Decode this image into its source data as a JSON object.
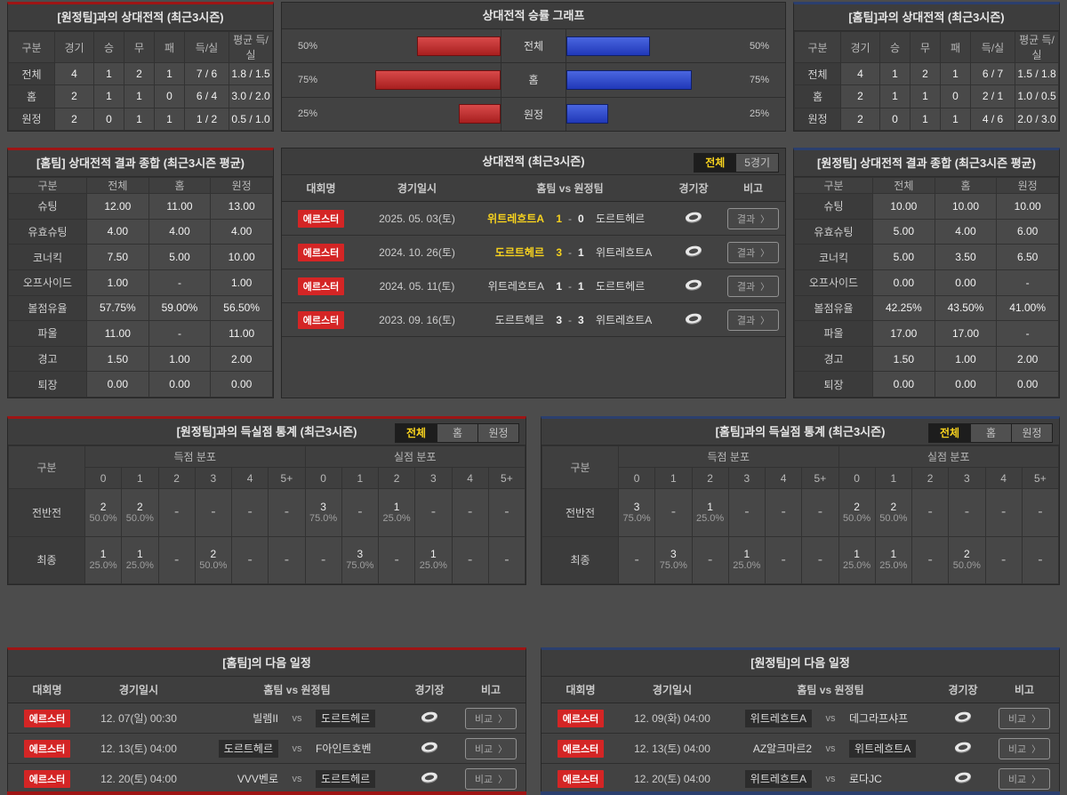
{
  "colors": {
    "accent_home_red": "#9e1515",
    "accent_away_blue": "#2b3f6e",
    "bar_red": "#c23030",
    "bar_blue": "#3550d0",
    "highlight_yellow": "#f7d21e",
    "badge_red": "#d42525"
  },
  "icons": {
    "stadium": "stadium-icon",
    "chevron": "〉"
  },
  "top_left_record": {
    "title": "[원정팀]과의 상대전적 (최근3시즌)",
    "headers": [
      "구분",
      "경기",
      "승",
      "무",
      "패",
      "득/실",
      "평균 득/실"
    ],
    "rows": [
      {
        "label": "전체",
        "cells": [
          "4",
          "1",
          "2",
          "1",
          "7 / 6",
          "1.8 / 1.5"
        ]
      },
      {
        "label": "홈",
        "cells": [
          "2",
          "1",
          "1",
          "0",
          "6 / 4",
          "3.0 / 2.0"
        ]
      },
      {
        "label": "원정",
        "cells": [
          "2",
          "0",
          "1",
          "1",
          "1 / 2",
          "0.5 / 1.0"
        ]
      }
    ]
  },
  "top_right_record": {
    "title": "[홈팀]과의 상대전적 (최근3시즌)",
    "headers": [
      "구분",
      "경기",
      "승",
      "무",
      "패",
      "득/실",
      "평균 득/실"
    ],
    "rows": [
      {
        "label": "전체",
        "cells": [
          "4",
          "1",
          "2",
          "1",
          "6 / 7",
          "1.5 / 1.8"
        ]
      },
      {
        "label": "홈",
        "cells": [
          "2",
          "1",
          "1",
          "0",
          "2 / 1",
          "1.0 / 0.5"
        ]
      },
      {
        "label": "원정",
        "cells": [
          "2",
          "0",
          "1",
          "1",
          "4 / 6",
          "2.0 / 3.0"
        ]
      }
    ]
  },
  "win_rate_chart": {
    "title": "상대전적 승률 그래프",
    "type": "bar",
    "rows": [
      {
        "label": "전체",
        "left_label": "50%",
        "left_pct": 50,
        "right_label": "50%",
        "right_pct": 50
      },
      {
        "label": "홈",
        "left_label": "75%",
        "left_pct": 75,
        "right_label": "75%",
        "right_pct": 75
      },
      {
        "label": "원정",
        "left_label": "25%",
        "left_pct": 25,
        "right_label": "25%",
        "right_pct": 25
      }
    ]
  },
  "home_summary": {
    "title": "[홈팀] 상대전적 결과 종합 (최근3시즌 평균)",
    "headers": [
      "구분",
      "전체",
      "홈",
      "원정"
    ],
    "rows": [
      {
        "label": "슈팅",
        "cells": [
          "12.00",
          "11.00",
          "13.00"
        ]
      },
      {
        "label": "유효슈팅",
        "cells": [
          "4.00",
          "4.00",
          "4.00"
        ]
      },
      {
        "label": "코너킥",
        "cells": [
          "7.50",
          "5.00",
          "10.00"
        ]
      },
      {
        "label": "오프사이드",
        "cells": [
          "1.00",
          "-",
          "1.00"
        ]
      },
      {
        "label": "볼점유율",
        "cells": [
          "57.75%",
          "59.00%",
          "56.50%"
        ]
      },
      {
        "label": "파울",
        "cells": [
          "11.00",
          "-",
          "11.00"
        ]
      },
      {
        "label": "경고",
        "cells": [
          "1.50",
          "1.00",
          "2.00"
        ]
      },
      {
        "label": "퇴장",
        "cells": [
          "0.00",
          "0.00",
          "0.00"
        ]
      }
    ]
  },
  "away_summary": {
    "title": "[원정팀] 상대전적 결과 종합 (최근3시즌 평균)",
    "headers": [
      "구분",
      "전체",
      "홈",
      "원정"
    ],
    "rows": [
      {
        "label": "슈팅",
        "cells": [
          "10.00",
          "10.00",
          "10.00"
        ]
      },
      {
        "label": "유효슈팅",
        "cells": [
          "5.00",
          "4.00",
          "6.00"
        ]
      },
      {
        "label": "코너킥",
        "cells": [
          "5.00",
          "3.50",
          "6.50"
        ]
      },
      {
        "label": "오프사이드",
        "cells": [
          "0.00",
          "0.00",
          "-"
        ]
      },
      {
        "label": "볼점유율",
        "cells": [
          "42.25%",
          "43.50%",
          "41.00%"
        ]
      },
      {
        "label": "파울",
        "cells": [
          "17.00",
          "17.00",
          "-"
        ]
      },
      {
        "label": "경고",
        "cells": [
          "1.50",
          "1.00",
          "2.00"
        ]
      },
      {
        "label": "퇴장",
        "cells": [
          "0.00",
          "0.00",
          "0.00"
        ]
      }
    ]
  },
  "h2h_matches": {
    "title": "상대전적 (최근3시즌)",
    "tabs": [
      {
        "label": "전체",
        "active": true
      },
      {
        "label": "5경기",
        "active": false
      }
    ],
    "headers": {
      "league": "대회명",
      "date": "경기일시",
      "teams": "홈팀  vs  원정팀",
      "stadium": "경기장",
      "note": "비고"
    },
    "note_label": "결과",
    "rows": [
      {
        "league": "에르스터",
        "date": "2025. 05. 03(토)",
        "home": "위트레흐트A",
        "home_win": true,
        "score_home": "1",
        "score_away": "0",
        "away": "도르트헤르",
        "away_win": false
      },
      {
        "league": "에르스터",
        "date": "2024. 10. 26(토)",
        "home": "도르트헤르",
        "home_win": true,
        "score_home": "3",
        "score_away": "1",
        "away": "위트레흐트A",
        "away_win": false
      },
      {
        "league": "에르스터",
        "date": "2024. 05. 11(토)",
        "home": "위트레흐트A",
        "home_win": false,
        "score_home": "1",
        "score_away": "1",
        "away": "도르트헤르",
        "away_win": false
      },
      {
        "league": "에르스터",
        "date": "2023. 09. 16(토)",
        "home": "도르트헤르",
        "home_win": false,
        "score_home": "3",
        "score_away": "3",
        "away": "위트레흐트A",
        "away_win": false
      }
    ]
  },
  "goal_stats_left": {
    "title": "[원정팀]과의 득실점 통계 (최근3시즌)",
    "tabs": [
      {
        "label": "전체",
        "active": true
      },
      {
        "label": "홈",
        "active": false
      },
      {
        "label": "원정",
        "active": false
      }
    ],
    "corner": "구분",
    "groups": [
      "득점 분포",
      "실점 분포"
    ],
    "bins": [
      "0",
      "1",
      "2",
      "3",
      "4",
      "5+"
    ],
    "rows": [
      {
        "label": "전반전",
        "scored": [
          [
            "2",
            "50.0%"
          ],
          [
            "2",
            "50.0%"
          ],
          null,
          null,
          null,
          null
        ],
        "conceded": [
          [
            "3",
            "75.0%"
          ],
          null,
          [
            "1",
            "25.0%"
          ],
          null,
          null,
          null
        ]
      },
      {
        "label": "최종",
        "scored": [
          [
            "1",
            "25.0%"
          ],
          [
            "1",
            "25.0%"
          ],
          null,
          [
            "2",
            "50.0%"
          ],
          null,
          null
        ],
        "conceded": [
          null,
          [
            "3",
            "75.0%"
          ],
          null,
          [
            "1",
            "25.0%"
          ],
          null,
          null
        ]
      }
    ]
  },
  "goal_stats_right": {
    "title": "[홈팀]과의 득실점 통계 (최근3시즌)",
    "tabs": [
      {
        "label": "전체",
        "active": true
      },
      {
        "label": "홈",
        "active": false
      },
      {
        "label": "원정",
        "active": false
      }
    ],
    "corner": "구분",
    "groups": [
      "득점 분포",
      "실점 분포"
    ],
    "bins": [
      "0",
      "1",
      "2",
      "3",
      "4",
      "5+"
    ],
    "rows": [
      {
        "label": "전반전",
        "scored": [
          [
            "3",
            "75.0%"
          ],
          null,
          [
            "1",
            "25.0%"
          ],
          null,
          null,
          null
        ],
        "conceded": [
          [
            "2",
            "50.0%"
          ],
          [
            "2",
            "50.0%"
          ],
          null,
          null,
          null,
          null
        ]
      },
      {
        "label": "최종",
        "scored": [
          null,
          [
            "3",
            "75.0%"
          ],
          null,
          [
            "1",
            "25.0%"
          ],
          null,
          null
        ],
        "conceded": [
          [
            "1",
            "25.0%"
          ],
          [
            "1",
            "25.0%"
          ],
          null,
          [
            "2",
            "50.0%"
          ],
          null,
          null
        ]
      }
    ]
  },
  "home_schedule": {
    "title": "[홈팀]의 다음 일정",
    "headers": {
      "league": "대회명",
      "date": "경기일시",
      "teams": "홈팀  vs  원정팀",
      "stadium": "경기장",
      "note": "비고"
    },
    "vs_label": "vs",
    "note_label": "비교",
    "rows": [
      {
        "league": "에르스터",
        "date": "12. 07(일) 00:30",
        "home": "빌렘II",
        "home_hl": false,
        "away": "도르트헤르",
        "away_hl": true
      },
      {
        "league": "에르스터",
        "date": "12. 13(토) 04:00",
        "home": "도르트헤르",
        "home_hl": true,
        "away": "F아인트호벤",
        "away_hl": false
      },
      {
        "league": "에르스터",
        "date": "12. 20(토) 04:00",
        "home": "VVV벤로",
        "home_hl": false,
        "away": "도르트헤르",
        "away_hl": true
      }
    ]
  },
  "away_schedule": {
    "title": "[원정팀]의 다음 일정",
    "headers": {
      "league": "대회명",
      "date": "경기일시",
      "teams": "홈팀  vs  원정팀",
      "stadium": "경기장",
      "note": "비고"
    },
    "vs_label": "vs",
    "note_label": "비교",
    "rows": [
      {
        "league": "에르스터",
        "date": "12. 09(화) 04:00",
        "home": "위트레흐트A",
        "home_hl": true,
        "away": "데그라프샤프",
        "away_hl": false
      },
      {
        "league": "에르스터",
        "date": "12. 13(토) 04:00",
        "home": "AZ알크마르2",
        "home_hl": false,
        "away": "위트레흐트A",
        "away_hl": true
      },
      {
        "league": "에르스터",
        "date": "12. 20(토) 04:00",
        "home": "위트레흐트A",
        "home_hl": true,
        "away": "로다JC",
        "away_hl": false
      }
    ]
  }
}
